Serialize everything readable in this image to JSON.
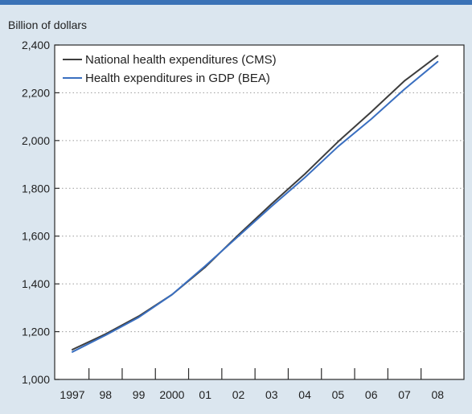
{
  "chart_data": {
    "type": "line",
    "title": "",
    "ylabel": "Billion of dollars",
    "xlabel": "",
    "x_tick_labels": [
      "1997",
      "98",
      "99",
      "2000",
      "01",
      "02",
      "03",
      "04",
      "05",
      "06",
      "07",
      "08"
    ],
    "y_tick_labels": [
      "1,000",
      "1,200",
      "1,400",
      "1,600",
      "1,800",
      "2,000",
      "2,200",
      "2,400"
    ],
    "y_ticks": [
      1000,
      1200,
      1400,
      1600,
      1800,
      2000,
      2200,
      2400
    ],
    "ylim": [
      1000,
      2400
    ],
    "x": [
      1997,
      1998,
      1999,
      2000,
      2001,
      2002,
      2003,
      2004,
      2005,
      2006,
      2007,
      2008
    ],
    "grid": "horizontal dotted",
    "legend_position": "top-left",
    "series": [
      {
        "name": "National health expenditures (CMS)",
        "color": "#3d3d3d",
        "values": [
          1125,
          1190,
          1265,
          1355,
          1470,
          1605,
          1735,
          1860,
          1995,
          2120,
          2250,
          2355
        ]
      },
      {
        "name": "Health expenditures in GDP (BEA)",
        "color": "#3a6fc0",
        "values": [
          1115,
          1185,
          1260,
          1355,
          1475,
          1600,
          1725,
          1845,
          1975,
          2090,
          2215,
          2330
        ]
      }
    ]
  }
}
